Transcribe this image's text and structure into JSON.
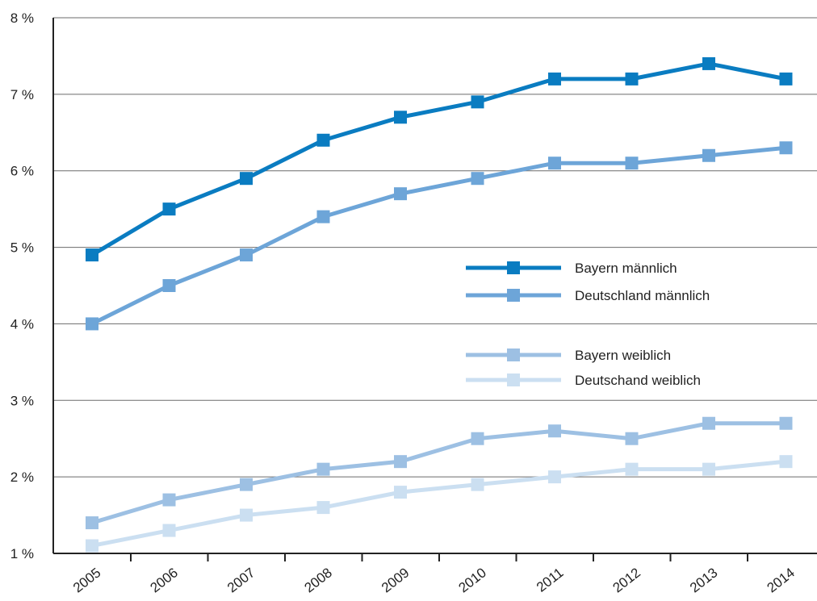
{
  "chart_data": {
    "type": "line",
    "title": "",
    "xlabel": "",
    "ylabel": "",
    "x": [
      "2005",
      "2006",
      "2007",
      "2008",
      "2009",
      "2010",
      "2011",
      "2012",
      "2013",
      "2014"
    ],
    "ylim": [
      1,
      8
    ],
    "yticks": [
      1,
      2,
      3,
      4,
      5,
      6,
      7,
      8
    ],
    "ytick_labels": [
      "1 %",
      "2 %",
      "3 %",
      "4 %",
      "5 %",
      "6 %",
      "7 %",
      "8 %"
    ],
    "grid": "horizontal",
    "legend_position": "center-right",
    "series": [
      {
        "name": "Bayern männlich",
        "color": "#0a7cc1",
        "values": [
          4.9,
          5.5,
          5.9,
          6.4,
          6.7,
          6.9,
          7.2,
          7.2,
          7.4,
          7.2
        ]
      },
      {
        "name": "Deutschland männlich",
        "color": "#6da5d8",
        "values": [
          4.0,
          4.5,
          4.9,
          5.4,
          5.7,
          5.9,
          6.1,
          6.1,
          6.2,
          6.3
        ]
      },
      {
        "name": "Bayern weiblich",
        "color": "#9dc0e3",
        "values": [
          1.4,
          1.7,
          1.9,
          2.1,
          2.2,
          2.5,
          2.6,
          2.5,
          2.7,
          2.7
        ]
      },
      {
        "name": "Deutschand weiblich",
        "color": "#cbdff1",
        "values": [
          1.1,
          1.3,
          1.5,
          1.6,
          1.8,
          1.9,
          2.0,
          2.1,
          2.1,
          2.2
        ]
      }
    ]
  }
}
